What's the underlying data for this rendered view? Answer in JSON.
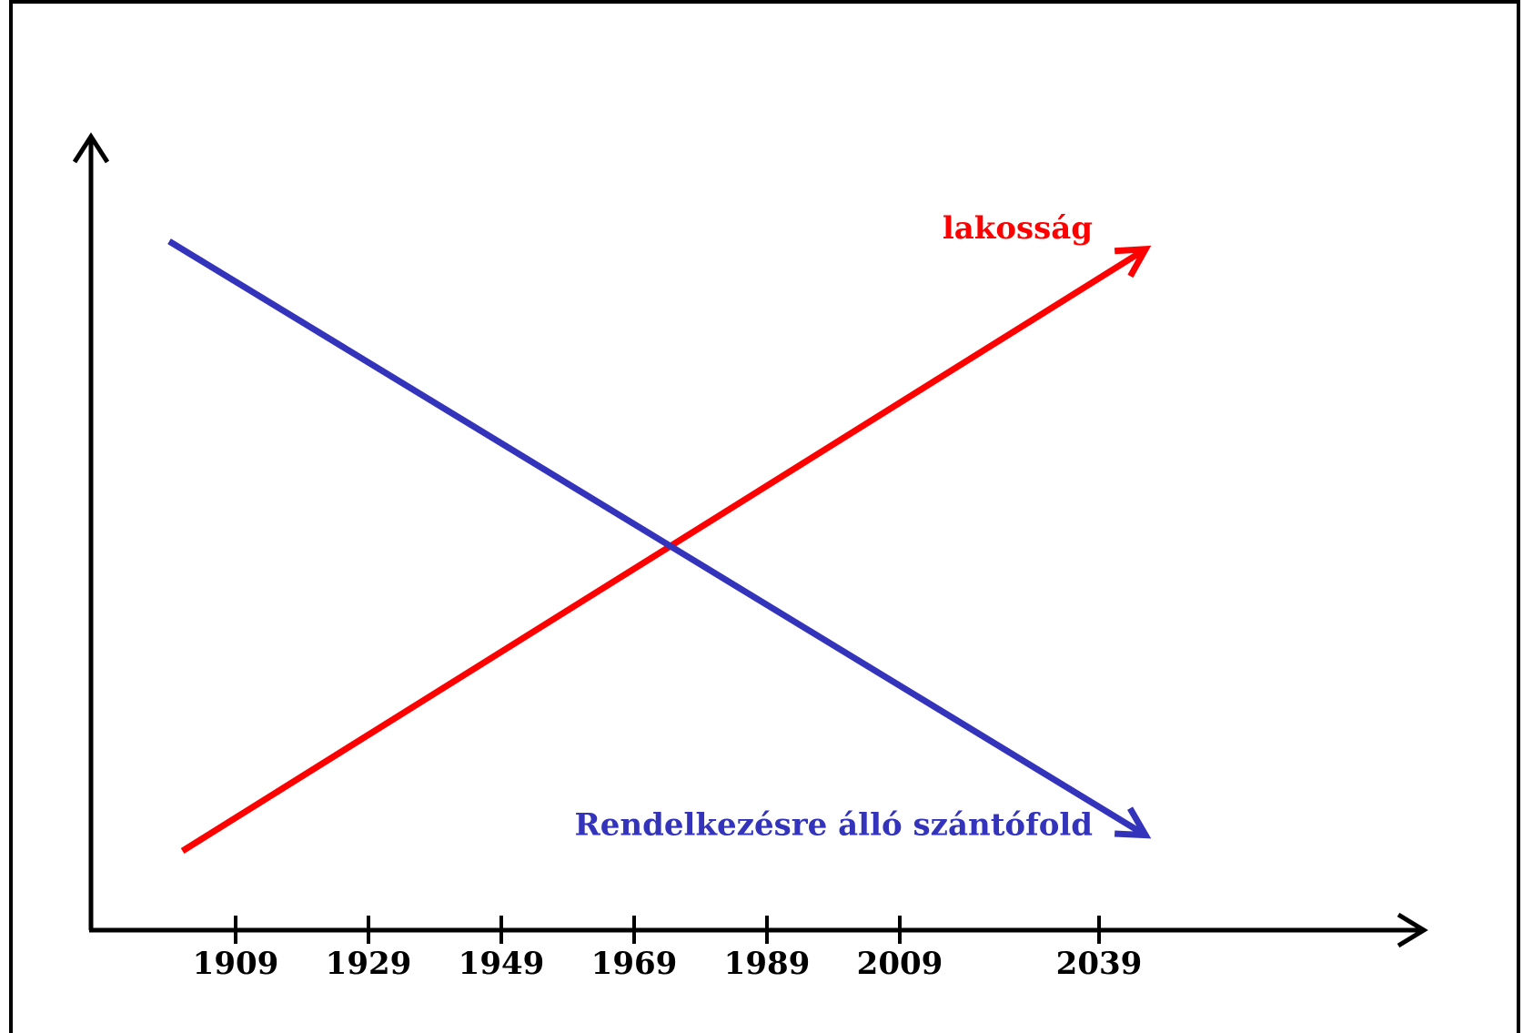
{
  "chart_data": {
    "type": "line",
    "title": "",
    "xlabel": "",
    "ylabel": "",
    "x_ticks": [
      "1909",
      "1929",
      "1949",
      "1969",
      "1989",
      "2009",
      "2039"
    ],
    "series": [
      {
        "name": "lakosság",
        "color": "#ff0000",
        "points": [
          [
            1901,
            0.1
          ],
          [
            2046,
            0.86
          ]
        ],
        "arrow_end": true
      },
      {
        "name": "Rendelkezésre álló szántófold",
        "color": "#3333bb",
        "points": [
          [
            1899,
            0.87
          ],
          [
            2046,
            0.12
          ]
        ],
        "arrow_end": true
      }
    ],
    "grid": false,
    "legend": "inline labels at line ends"
  },
  "colors": {
    "frame": "#000000",
    "axis": "#000000",
    "background": "#ffffff"
  }
}
